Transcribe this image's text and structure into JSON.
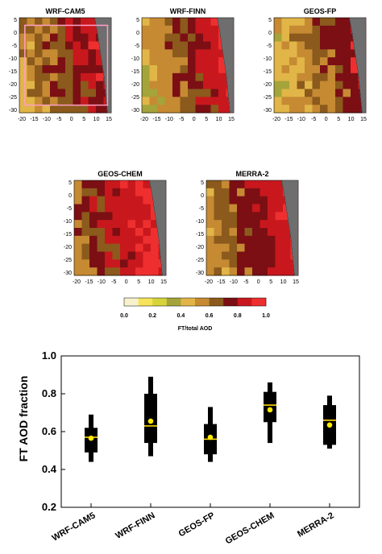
{
  "maps": [
    {
      "title": "WRF-CAM5",
      "values": [
        0.45,
        0.6,
        0.7,
        0.8,
        0.9
      ],
      "has_box": true
    },
    {
      "title": "WRF-FINN",
      "values": [
        0.4,
        0.55,
        0.7,
        0.85,
        0.95
      ],
      "has_box": false
    },
    {
      "title": "GEOS-FP",
      "values": [
        0.4,
        0.5,
        0.6,
        0.75,
        0.9
      ],
      "has_box": false
    },
    {
      "title": "GEOS-CHEM",
      "values": [
        0.55,
        0.7,
        0.82,
        0.9,
        0.97
      ],
      "has_box": false
    },
    {
      "title": "MERRA-2",
      "values": [
        0.5,
        0.62,
        0.75,
        0.85,
        0.92
      ],
      "has_box": false
    }
  ],
  "map_axes": {
    "y_ticks": [
      "5",
      "0",
      "-5",
      "-10",
      "-15",
      "-20",
      "-25",
      "-30"
    ],
    "x_ticks": [
      "-20",
      "-15",
      "-10",
      "-5",
      "0",
      "5",
      "10",
      "15"
    ]
  },
  "colorbar": {
    "colors": [
      "#f7f2cc",
      "#f5e35a",
      "#d6d43a",
      "#a4a43a",
      "#e1b547",
      "#c68a33",
      "#8b5a1c",
      "#7b0f14",
      "#c8181d",
      "#ef2f2f"
    ],
    "ticks": [
      "0.0",
      "0.2",
      "0.4",
      "0.6",
      "0.8",
      "1.0"
    ],
    "label": "FT/total AOD"
  },
  "chart_data": {
    "type": "boxplot",
    "ylabel": "FT AOD fraction",
    "ylim": [
      0.2,
      1.0
    ],
    "y_ticks": [
      "0.2",
      "0.4",
      "0.6",
      "0.8",
      "1.0"
    ],
    "categories": [
      "WRF-CAM5",
      "WRF-FINN",
      "GEOS-FP",
      "GEOS-CHEM",
      "MERRA-2"
    ],
    "whisker_low": [
      0.44,
      0.47,
      0.44,
      0.54,
      0.51
    ],
    "q1": [
      0.49,
      0.54,
      0.48,
      0.65,
      0.53
    ],
    "median": [
      0.57,
      0.63,
      0.56,
      0.74,
      0.66
    ],
    "q3": [
      0.62,
      0.8,
      0.64,
      0.81,
      0.74
    ],
    "whisker_high": [
      0.69,
      0.89,
      0.73,
      0.86,
      0.79
    ],
    "mean": [
      0.565,
      0.655,
      0.57,
      0.715,
      0.635
    ],
    "colors": {
      "box": "#000000",
      "median": "#ffd900",
      "mean": "#ffea00"
    }
  }
}
